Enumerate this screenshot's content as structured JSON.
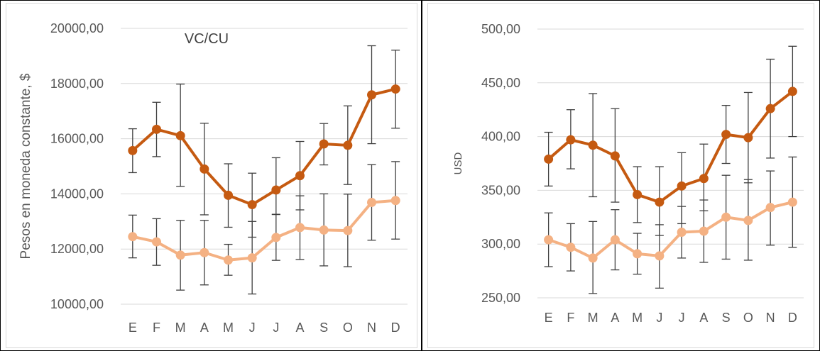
{
  "chart_data": [
    {
      "type": "line",
      "title": "VC/CU",
      "xlabel": "",
      "ylabel": "Pesos en moneda constante, $",
      "categories": [
        "E",
        "F",
        "M",
        "A",
        "M",
        "J",
        "J",
        "A",
        "S",
        "O",
        "N",
        "D"
      ],
      "ylim": [
        10000,
        20000
      ],
      "yticks": [
        "10000,00",
        "12000,00",
        "14000,00",
        "16000,00",
        "18000,00",
        "20000,00"
      ],
      "grid": true,
      "legend": "none",
      "series": [
        {
          "color": "#c55a11",
          "values": [
            15570,
            16340,
            16110,
            14900,
            13950,
            13610,
            14140,
            14660,
            15810,
            15760,
            17590,
            17800
          ],
          "error_low": [
            14770,
            15350,
            14270,
            13240,
            12790,
            12430,
            13260,
            13420,
            15050,
            14340,
            15820,
            16380
          ],
          "error_high": [
            16360,
            17320,
            17980,
            16560,
            15090,
            14750,
            15310,
            15900,
            16550,
            17190,
            19370,
            19210
          ]
        },
        {
          "color": "#f4b183",
          "values": [
            12450,
            12260,
            11780,
            11870,
            11600,
            11680,
            12420,
            12780,
            12690,
            12670,
            13690,
            13760
          ],
          "error_low": [
            11680,
            11410,
            10510,
            10700,
            11050,
            10370,
            11590,
            11620,
            11390,
            11360,
            12320,
            12360
          ],
          "error_high": [
            13230,
            13100,
            13040,
            13040,
            12170,
            13000,
            13250,
            13930,
            14000,
            13990,
            15060,
            15170
          ]
        }
      ]
    },
    {
      "type": "line",
      "title": "",
      "xlabel": "",
      "ylabel": "USD",
      "categories": [
        "E",
        "F",
        "M",
        "A",
        "M",
        "J",
        "J",
        "A",
        "S",
        "O",
        "N",
        "D"
      ],
      "ylim": [
        250,
        500
      ],
      "yticks": [
        "250,00",
        "300,00",
        "350,00",
        "400,00",
        "450,00",
        "500,00"
      ],
      "grid": true,
      "legend": "none",
      "series": [
        {
          "color": "#c55a11",
          "values": [
            379,
            397,
            392,
            382,
            346,
            339,
            354,
            361,
            402,
            399,
            426,
            442
          ],
          "error_low": [
            354,
            370,
            344,
            339,
            320,
            308,
            319,
            331,
            375,
            357,
            380,
            400
          ],
          "error_high": [
            404,
            425,
            440,
            426,
            372,
            372,
            385,
            393,
            429,
            441,
            472,
            484
          ]
        },
        {
          "color": "#f4b183",
          "values": [
            304,
            297,
            287,
            304,
            291,
            289,
            311,
            312,
            325,
            322,
            334,
            339
          ],
          "error_low": [
            279,
            275,
            254,
            276,
            272,
            259,
            287,
            283,
            286,
            285,
            299,
            297
          ],
          "error_high": [
            329,
            319,
            321,
            332,
            310,
            318,
            335,
            341,
            364,
            360,
            368,
            381
          ]
        }
      ]
    }
  ]
}
